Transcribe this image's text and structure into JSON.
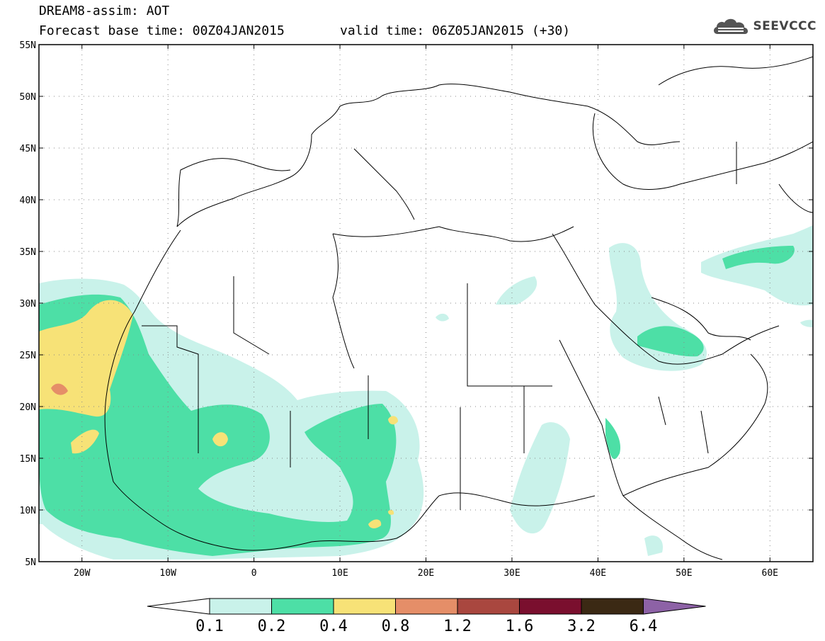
{
  "header": {
    "line1": "DREAM8-assim: AOT",
    "base_time": "Forecast base time: 00Z04JAN2015",
    "valid_time": "valid time: 06Z05JAN2015 (+30)",
    "logo_text": "SEEVCCC",
    "logo_icon": "cloud-icon"
  },
  "map": {
    "lon_range": [
      -25,
      65
    ],
    "lat_range": [
      5,
      55
    ],
    "lat_labels": [
      "55N",
      "50N",
      "45N",
      "40N",
      "35N",
      "30N",
      "25N",
      "20N",
      "15N",
      "10N",
      "5N"
    ],
    "lon_labels": [
      "20W",
      "10W",
      "0",
      "10E",
      "20E",
      "30E",
      "40E",
      "50E",
      "60E"
    ],
    "grid": "dotted",
    "colors": {
      "border": "#000000",
      "frame": "#000000"
    }
  },
  "colorbar": {
    "labels": [
      "0.1",
      "0.2",
      "0.4",
      "0.8",
      "1.2",
      "1.6",
      "3.2",
      "6.4"
    ],
    "colors": [
      "#ffffff",
      "#c9f2ea",
      "#4ddfa6",
      "#f7e277",
      "#e58e68",
      "#a9473f",
      "#7a0f2e",
      "#3b2914",
      "#8d62a6"
    ]
  }
}
